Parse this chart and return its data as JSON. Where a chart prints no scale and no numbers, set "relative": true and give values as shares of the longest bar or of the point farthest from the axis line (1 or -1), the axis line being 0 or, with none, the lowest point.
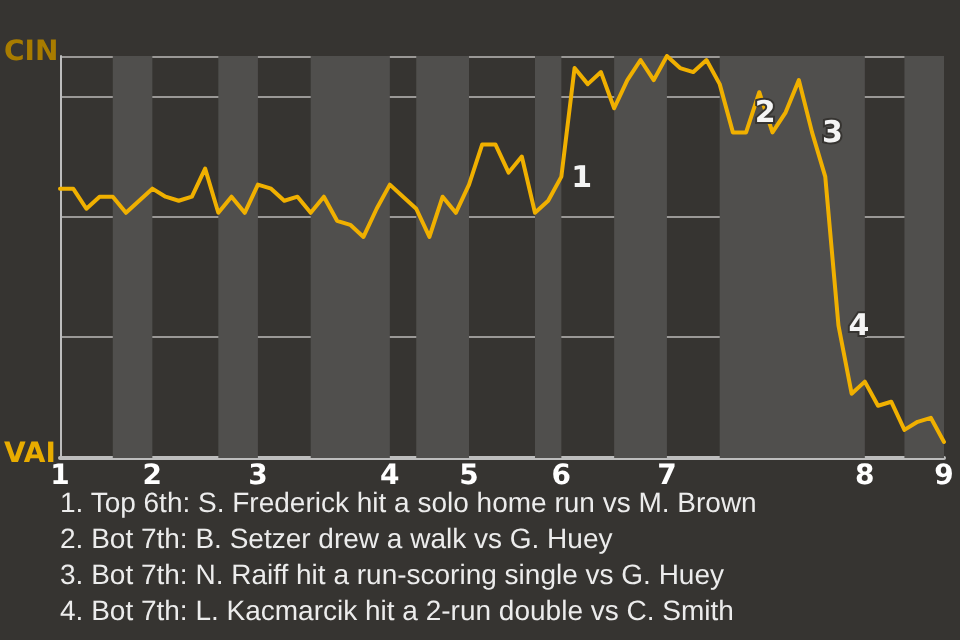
{
  "chart_data": {
    "type": "line",
    "color": "#f0b000",
    "relative": true,
    "categories": [
      "1",
      null,
      null,
      null,
      null,
      null,
      null,
      "2",
      null,
      null,
      null,
      null,
      null,
      null,
      null,
      "3",
      null,
      null,
      null,
      null,
      null,
      null,
      null,
      null,
      null,
      "4",
      null,
      null,
      null,
      null,
      null,
      "5",
      null,
      null,
      null,
      null,
      null,
      null,
      "6",
      null,
      null,
      null,
      null,
      null,
      null,
      null,
      "7",
      null,
      null,
      null,
      null,
      null,
      null,
      null,
      null,
      null,
      null,
      null,
      null,
      null,
      null,
      "8",
      null,
      null,
      null,
      null,
      null,
      "9"
    ],
    "values": [
      0.67,
      0.67,
      0.62,
      0.65,
      0.65,
      0.61,
      0.64,
      0.67,
      0.65,
      0.64,
      0.65,
      0.72,
      0.61,
      0.65,
      0.61,
      0.68,
      0.67,
      0.64,
      0.65,
      0.61,
      0.65,
      0.59,
      0.58,
      0.55,
      0.62,
      0.68,
      0.65,
      0.62,
      0.55,
      0.65,
      0.61,
      0.68,
      0.78,
      0.78,
      0.71,
      0.75,
      0.61,
      0.64,
      0.7,
      0.97,
      0.93,
      0.96,
      0.87,
      0.94,
      0.99,
      0.94,
      1,
      0.97,
      0.96,
      0.99,
      0.93,
      0.81,
      0.81,
      0.91,
      0.81,
      0.86,
      0.94,
      0.81,
      0.7,
      0.33,
      0.16,
      0.19,
      0.13,
      0.14,
      0.07,
      0.09,
      0.1,
      0.04
    ],
    "grid": "y",
    "marker": "none",
    "annotations": [
      "1",
      "2",
      "3",
      "4",
      "CIN",
      "VAI",
      "1. Top 6th: S. Frederick hit a solo home run vs M. Brown",
      "2. Bot 7th: B. Setzer drew a walk vs G. Huey",
      "3. Bot 7th: N. Raiff hit a run-scoring single vs G. Huey",
      "4. Bot 7th: L. Kacmarcik hit a 2-run double vs C. Smith"
    ]
  }
}
